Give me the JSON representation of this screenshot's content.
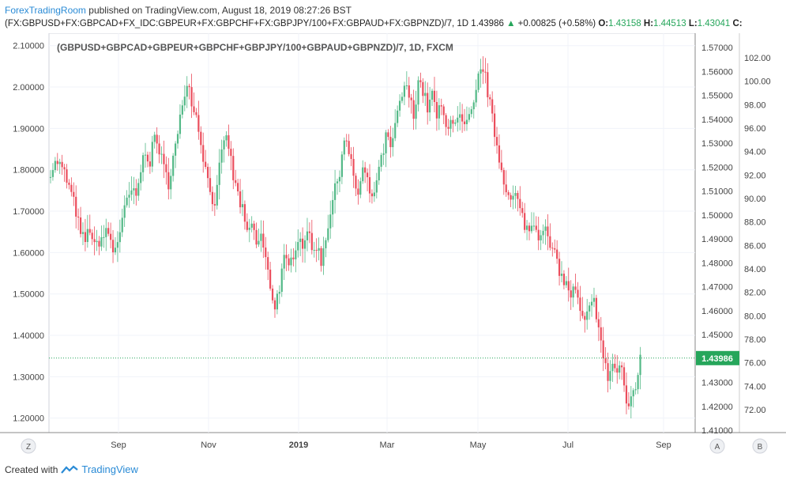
{
  "header": {
    "publisher": "ForexTradingRoom",
    "published_text": "published on TradingView.com, August 18, 2019 08:27:26 BST",
    "symbol": "(FX:GBPUSD+FX:GBPCAD+FX_IDC:GBPEUR+FX:GBPCHF+FX:GBPJPY/100+FX:GBPAUD+FX:GBPNZD)/7, 1D",
    "last": "1.43986",
    "change": "+0.00825 (+0.58%)",
    "o_label": "O:",
    "o_value": "1.43158",
    "h_label": "H:",
    "h_value": "1.44513",
    "l_label": "L:",
    "l_value": "1.43041",
    "c_label": "C:"
  },
  "footer": {
    "created_with": "Created with",
    "brand": "TradingView"
  },
  "buttons": {
    "z": "Z",
    "a": "A",
    "b": "B"
  },
  "colors": {
    "up": "#53b987",
    "down": "#eb4d5c",
    "grid": "#f0f3fa",
    "last_line": "#26a65b",
    "brand": "#2a8bd6"
  },
  "chart_data": {
    "type": "candlestick",
    "title": "(GBPUSD+GBPCAD+GBPEUR+GBPCHF+GBPJPY/100+GBPAUD+GBPNZD)/7, 1D, FXCM",
    "left_axis": {
      "ticks": [
        "2.10000",
        "2.00000",
        "1.90000",
        "1.80000",
        "1.70000",
        "1.60000",
        "1.50000",
        "1.40000",
        "1.30000",
        "1.20000"
      ],
      "range": [
        1.165,
        2.13
      ]
    },
    "right_axis_1": {
      "ticks": [
        "1.57000",
        "1.56000",
        "1.55000",
        "1.54000",
        "1.53000",
        "1.52000",
        "1.51000",
        "1.50000",
        "1.49000",
        "1.48000",
        "1.47000",
        "1.46000",
        "1.45000",
        "1.44000",
        "1.43000",
        "1.42000",
        "1.41000"
      ]
    },
    "right_axis_2": {
      "ticks": [
        "102.00",
        "100.00",
        "98.00",
        "96.00",
        "94.00",
        "92.00",
        "90.00",
        "88.00",
        "86.00",
        "84.00",
        "82.00",
        "80.00",
        "78.00",
        "76.00",
        "74.00",
        "72.00"
      ]
    },
    "x_ticks": [
      "Sep",
      "Nov",
      "2019",
      "Mar",
      "May",
      "Jul",
      "Sep"
    ],
    "last_price_label": "1.43986",
    "last_price_value": 1.345,
    "close_path": [
      [
        0,
        1.8
      ],
      [
        6,
        1.82
      ],
      [
        12,
        1.79
      ],
      [
        18,
        1.74
      ],
      [
        22,
        1.7
      ],
      [
        26,
        1.64
      ],
      [
        30,
        1.63
      ],
      [
        34,
        1.66
      ],
      [
        38,
        1.61
      ],
      [
        42,
        1.63
      ],
      [
        46,
        1.64
      ],
      [
        50,
        1.65
      ],
      [
        54,
        1.6
      ],
      [
        58,
        1.63
      ],
      [
        62,
        1.68
      ],
      [
        66,
        1.72
      ],
      [
        70,
        1.75
      ],
      [
        74,
        1.73
      ],
      [
        78,
        1.8
      ],
      [
        82,
        1.85
      ],
      [
        86,
        1.82
      ],
      [
        90,
        1.88
      ],
      [
        94,
        1.85
      ],
      [
        98,
        1.8
      ],
      [
        102,
        1.77
      ],
      [
        106,
        1.83
      ],
      [
        110,
        1.88
      ],
      [
        114,
        1.96
      ],
      [
        118,
        2.02
      ],
      [
        122,
        1.97
      ],
      [
        126,
        1.93
      ],
      [
        130,
        1.87
      ],
      [
        134,
        1.8
      ],
      [
        138,
        1.76
      ],
      [
        142,
        1.7
      ],
      [
        146,
        1.8
      ],
      [
        150,
        1.88
      ],
      [
        154,
        1.86
      ],
      [
        158,
        1.78
      ],
      [
        162,
        1.74
      ],
      [
        166,
        1.7
      ],
      [
        170,
        1.64
      ],
      [
        174,
        1.67
      ],
      [
        178,
        1.62
      ],
      [
        182,
        1.64
      ],
      [
        186,
        1.58
      ],
      [
        190,
        1.52
      ],
      [
        194,
        1.47
      ],
      [
        198,
        1.52
      ],
      [
        202,
        1.58
      ],
      [
        206,
        1.56
      ],
      [
        210,
        1.6
      ],
      [
        214,
        1.64
      ],
      [
        218,
        1.62
      ],
      [
        222,
        1.66
      ],
      [
        226,
        1.6
      ],
      [
        230,
        1.62
      ],
      [
        234,
        1.58
      ],
      [
        238,
        1.64
      ],
      [
        242,
        1.7
      ],
      [
        246,
        1.75
      ],
      [
        250,
        1.8
      ],
      [
        254,
        1.88
      ],
      [
        258,
        1.84
      ],
      [
        262,
        1.78
      ],
      [
        266,
        1.74
      ],
      [
        270,
        1.8
      ],
      [
        274,
        1.77
      ],
      [
        278,
        1.72
      ],
      [
        282,
        1.78
      ],
      [
        286,
        1.82
      ],
      [
        290,
        1.88
      ],
      [
        294,
        1.85
      ],
      [
        298,
        1.9
      ],
      [
        302,
        1.96
      ],
      [
        306,
        2.0
      ],
      [
        310,
        1.98
      ],
      [
        314,
        1.93
      ],
      [
        318,
        2.02
      ],
      [
        322,
        1.99
      ],
      [
        326,
        1.95
      ],
      [
        330,
        1.98
      ],
      [
        334,
        1.93
      ],
      [
        338,
        1.95
      ],
      [
        342,
        1.9
      ],
      [
        346,
        1.93
      ],
      [
        350,
        1.91
      ],
      [
        354,
        1.92
      ],
      [
        358,
        1.9
      ],
      [
        362,
        1.92
      ],
      [
        366,
        1.95
      ],
      [
        370,
        2.02
      ],
      [
        374,
        2.05
      ],
      [
        378,
        1.99
      ],
      [
        382,
        1.92
      ],
      [
        386,
        1.86
      ],
      [
        390,
        1.8
      ],
      [
        394,
        1.76
      ],
      [
        398,
        1.72
      ],
      [
        402,
        1.74
      ],
      [
        406,
        1.7
      ],
      [
        410,
        1.67
      ],
      [
        414,
        1.65
      ],
      [
        418,
        1.68
      ],
      [
        422,
        1.64
      ],
      [
        426,
        1.67
      ],
      [
        430,
        1.63
      ],
      [
        434,
        1.6
      ],
      [
        438,
        1.58
      ],
      [
        442,
        1.54
      ],
      [
        446,
        1.52
      ],
      [
        450,
        1.5
      ],
      [
        454,
        1.51
      ],
      [
        458,
        1.45
      ],
      [
        462,
        1.43
      ],
      [
        466,
        1.46
      ],
      [
        470,
        1.48
      ],
      [
        474,
        1.43
      ],
      [
        478,
        1.34
      ],
      [
        482,
        1.3
      ],
      [
        486,
        1.33
      ],
      [
        490,
        1.31
      ],
      [
        494,
        1.33
      ],
      [
        498,
        1.22
      ],
      [
        502,
        1.25
      ],
      [
        506,
        1.28
      ],
      [
        510,
        1.34
      ]
    ]
  }
}
